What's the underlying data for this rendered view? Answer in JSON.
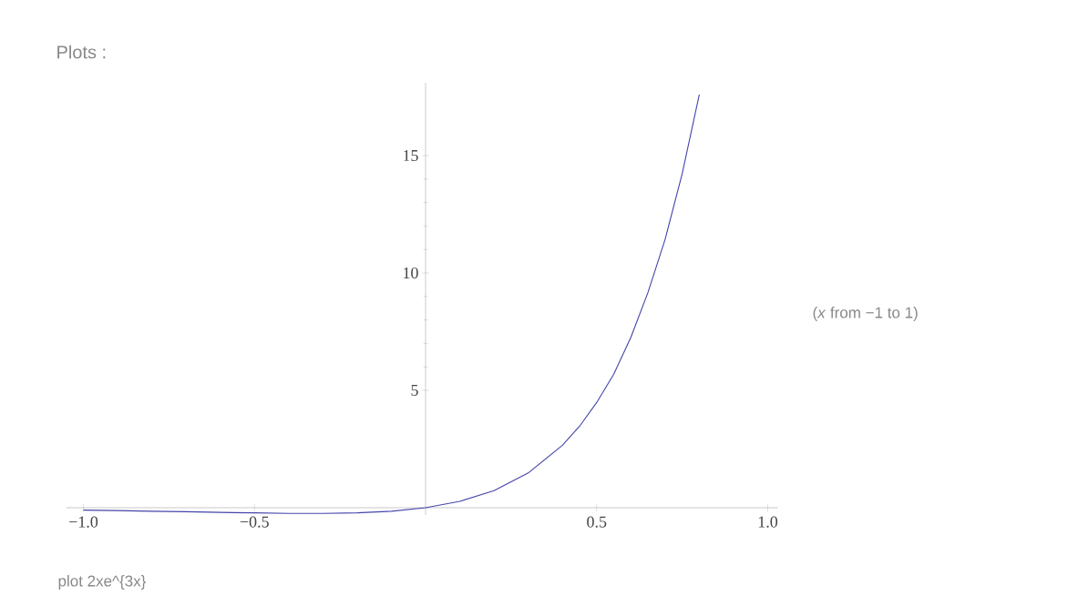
{
  "chart_data": {
    "type": "line",
    "title": "Plots :",
    "annotations": [
      "(*x* from −1 to 1)",
      "plot 2xe^{3x}"
    ],
    "series": [
      {
        "color": "#4444aa",
        "x": [
          -1,
          -0.9,
          -0.8,
          -0.7,
          -0.6,
          -0.5,
          -0.4,
          -0.3,
          -0.2,
          -0.1,
          0,
          0.1,
          0.2,
          0.3,
          0.4,
          0.45,
          0.5,
          0.55,
          0.6,
          0.65,
          0.7,
          0.75,
          0.8
        ],
        "values": [
          -0.1,
          -0.12,
          -0.15,
          -0.17,
          -0.2,
          -0.22,
          -0.24,
          -0.24,
          -0.22,
          -0.15,
          0,
          0.27,
          0.73,
          1.48,
          2.66,
          3.47,
          4.48,
          5.69,
          7.26,
          9.17,
          11.43,
          14.23,
          17.6
        ]
      }
    ],
    "xlim": [
      -1.05,
      1.03
    ],
    "ylim": [
      -0.3,
      18.1
    ],
    "xticks": [
      {
        "value": -1,
        "label": "−1.0"
      },
      {
        "value": -0.5,
        "label": "−0.5"
      },
      0.5,
      {
        "value": 1,
        "label": "1.0"
      }
    ],
    "yticks": [
      5,
      10,
      15
    ],
    "marker": "none",
    "line_style": "solid"
  }
}
